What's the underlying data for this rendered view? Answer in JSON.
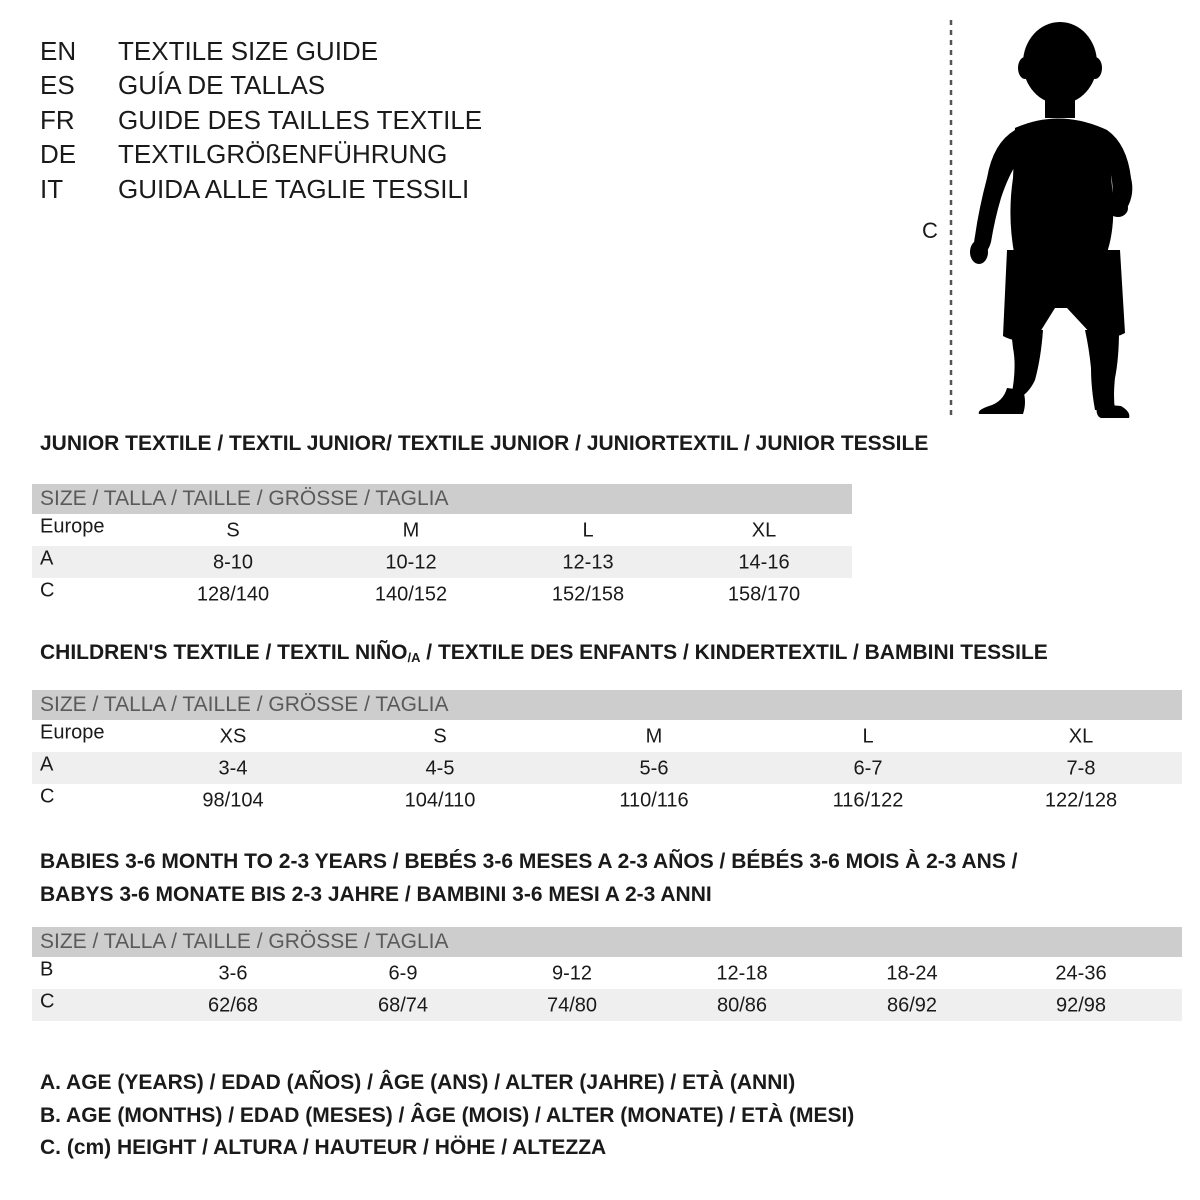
{
  "languages": [
    {
      "code": "EN",
      "title": "TEXTILE SIZE GUIDE"
    },
    {
      "code": "ES",
      "title": "GUÍA DE TALLAS"
    },
    {
      "code": "FR",
      "title": "GUIDE DES TAILLES TEXTILE"
    },
    {
      "code": "DE",
      "title": "TEXTILGRÖßENFÜHRUNG"
    },
    {
      "code": "IT",
      "title": "GUIDA ALLE TAGLIE TESSILI"
    }
  ],
  "figure": {
    "label": "C",
    "icon": "child-silhouette-icon"
  },
  "junior": {
    "title": "JUNIOR TEXTILE / TEXTIL JUNIOR/ TEXTILE JUNIOR / JUNIORTEXTIL / JUNIOR TESSILE",
    "header": "SIZE / TALLA / TAILLE / GRÖSSE / TAGLIA",
    "rows": [
      {
        "label": "Europe",
        "cells": [
          "S",
          "M",
          "L",
          "XL"
        ]
      },
      {
        "label": "A",
        "cells": [
          "8-10",
          "10-12",
          "12-13",
          "14-16"
        ]
      },
      {
        "label": "C",
        "cells": [
          "128/140",
          "140/152",
          "152/158",
          "158/170"
        ]
      }
    ]
  },
  "children": {
    "title_main": "CHILDREN'S TEXTILE / TEXTIL NIÑO",
    "title_sub": "/A",
    "title_rest": " / TEXTILE DES ENFANTS / KINDERTEXTIL / BAMBINI TESSILE",
    "header": "SIZE / TALLA / TAILLE / GRÖSSE / TAGLIA",
    "rows": [
      {
        "label": "Europe",
        "cells": [
          "XS",
          "S",
          "M",
          "L",
          "XL"
        ]
      },
      {
        "label": "A",
        "cells": [
          "3-4",
          "4-5",
          "5-6",
          "6-7",
          "7-8"
        ]
      },
      {
        "label": "C",
        "cells": [
          "98/104",
          "104/110",
          "110/116",
          "116/122",
          "122/128"
        ]
      }
    ]
  },
  "babies": {
    "title_line1": "BABIES 3-6 MONTH TO 2-3 YEARS / BEBÉS 3-6 MESES A 2-3 AÑOS / BÉBÉS 3-6 MOIS À 2-3 ANS /",
    "title_line2": "BABYS 3-6 MONATE BIS 2-3 JAHRE / BAMBINI 3-6 MESI A 2-3 ANNI",
    "header": "SIZE / TALLA / TAILLE / GRÖSSE / TAGLIA",
    "rows": [
      {
        "label": "B",
        "cells": [
          "3-6",
          "6-9",
          "9-12",
          "12-18",
          "18-24",
          "24-36"
        ]
      },
      {
        "label": "C",
        "cells": [
          "62/68",
          "68/74",
          "74/80",
          "80/86",
          "86/92",
          "92/98"
        ]
      }
    ]
  },
  "legend": [
    "A. AGE (YEARS) / EDAD (AÑOS) / ÂGE (ANS) / ALTER (JAHRE) / ETÀ (ANNI)",
    "B. AGE (MONTHS) / EDAD (MESES) / ÂGE (MOIS) / ALTER (MONATE) / ETÀ (MESI)",
    "C. (cm) HEIGHT / ALTURA / HAUTEUR / HÖHE / ALTEZZA"
  ]
}
